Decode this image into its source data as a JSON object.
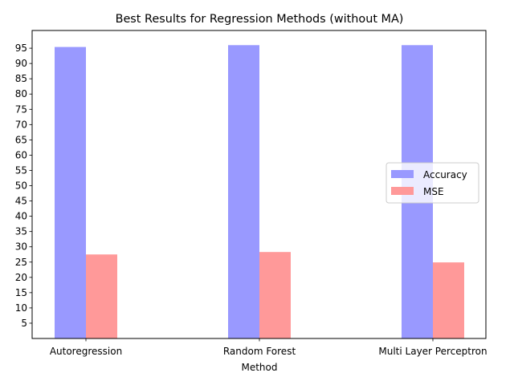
{
  "chart_data": {
    "type": "bar",
    "title": "Best Results for Regression Methods (without MA)",
    "xlabel": "Method",
    "ylabel": "",
    "categories": [
      "Autoregression",
      "Random Forest",
      "Multi Layer Perceptron"
    ],
    "series": [
      {
        "name": "Accuracy",
        "values": [
          95.4,
          96.0,
          96.0
        ],
        "color": "#9999ff"
      },
      {
        "name": "MSE",
        "values": [
          27.5,
          28.3,
          24.9
        ],
        "color": "#ff9999"
      }
    ],
    "yticks": [
      "5",
      "10",
      "15",
      "20",
      "25",
      "30",
      "35",
      "40",
      "45",
      "50",
      "55",
      "60",
      "65",
      "70",
      "75",
      "80",
      "85",
      "90",
      "95"
    ],
    "ylim": [
      0,
      100.8
    ],
    "grid": false,
    "legend_position": "center-right"
  }
}
